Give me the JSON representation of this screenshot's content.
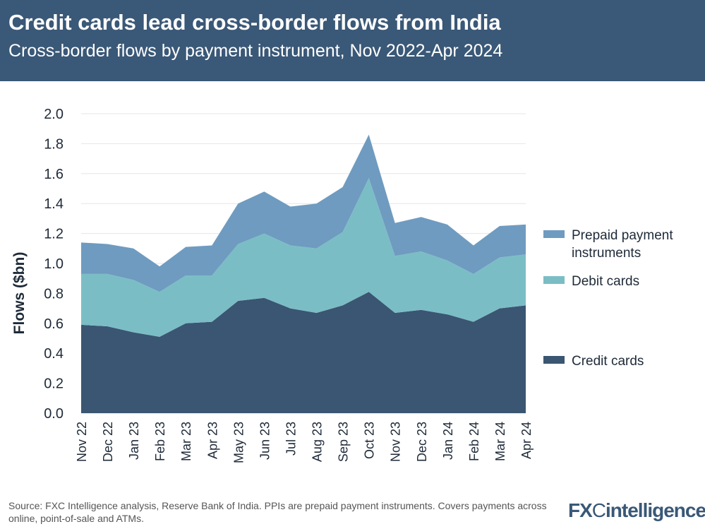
{
  "header": {
    "title": "Credit cards lead cross-border flows from India",
    "subtitle": "Cross-border flows by payment instrument, Nov 2022-Apr 2024"
  },
  "chart_data": {
    "type": "area",
    "stacked": true,
    "ylabel": "Flows ($bn)",
    "xlabel": "",
    "ylim": [
      0,
      2.0
    ],
    "yticks": [
      "0.0",
      "0.2",
      "0.4",
      "0.6",
      "0.8",
      "1.0",
      "1.2",
      "1.4",
      "1.6",
      "1.8",
      "2.0"
    ],
    "grid": true,
    "legend": "right",
    "categories": [
      "Nov 22",
      "Dec 22",
      "Jan 23",
      "Feb 23",
      "Mar 23",
      "Apr 23",
      "May 23",
      "Jun 23",
      "Jul 23",
      "Aug 23",
      "Sep 23",
      "Oct 23",
      "Nov 23",
      "Dec 23",
      "Jan 24",
      "Feb 24",
      "Mar 24",
      "Apr 24"
    ],
    "series": [
      {
        "name": "Credit cards",
        "color": "#3a5672",
        "values": [
          0.59,
          0.58,
          0.54,
          0.51,
          0.6,
          0.61,
          0.75,
          0.77,
          0.7,
          0.67,
          0.72,
          0.81,
          0.67,
          0.69,
          0.66,
          0.61,
          0.7,
          0.72
        ]
      },
      {
        "name": "Debit cards",
        "color": "#7bbdc5",
        "values": [
          0.34,
          0.35,
          0.35,
          0.3,
          0.32,
          0.31,
          0.38,
          0.43,
          0.42,
          0.43,
          0.49,
          0.76,
          0.38,
          0.39,
          0.36,
          0.32,
          0.34,
          0.34
        ]
      },
      {
        "name": "Prepaid payment instruments",
        "color": "#6f9bc0",
        "values": [
          0.21,
          0.2,
          0.21,
          0.17,
          0.19,
          0.2,
          0.27,
          0.28,
          0.26,
          0.3,
          0.3,
          0.29,
          0.22,
          0.23,
          0.24,
          0.19,
          0.21,
          0.2
        ]
      }
    ]
  },
  "footer": {
    "source": "Source: FXC Intelligence analysis, Reserve Bank of India. PPIs are prepaid payment instruments. Covers payments across online, point-of-sale and ATMs.",
    "logo": "FXCintelligence"
  }
}
